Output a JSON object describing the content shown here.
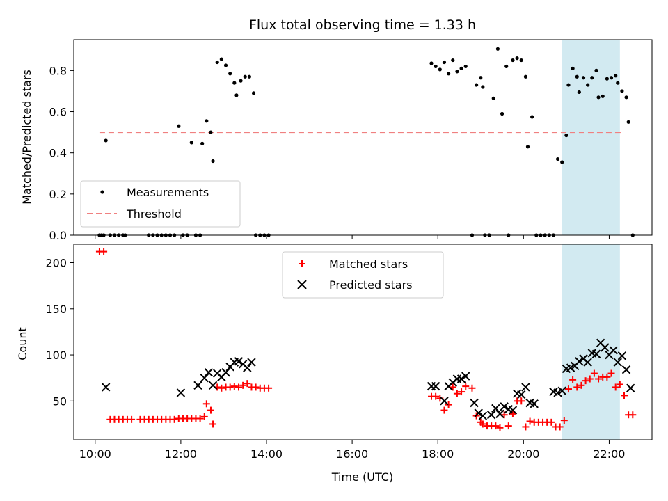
{
  "chart_data": [
    {
      "type": "scatter",
      "title": "Flux total observing time = 1.33 h",
      "ylabel": "Matched/Predicted stars",
      "xlabel": "",
      "xlim": [
        "09:30",
        "23:00"
      ],
      "ylim": [
        0,
        0.95
      ],
      "yticks": [
        0.0,
        0.2,
        0.4,
        0.6,
        0.8
      ],
      "ytick_labels": [
        "0.0",
        "0.2",
        "0.4",
        "0.6",
        "0.8"
      ],
      "xticks": [
        "10:00",
        "12:00",
        "14:00",
        "16:00",
        "18:00",
        "20:00",
        "22:00"
      ],
      "grid": false,
      "legend_position": "lower-left",
      "legend": [
        "Measurements",
        "Threshold"
      ],
      "highlight_span": {
        "x0": "20:54",
        "x1": "22:15",
        "color": "#add8e6"
      },
      "threshold": {
        "y": 0.5,
        "x0": "10:06",
        "x1": "22:18",
        "color": "#f08080"
      },
      "colors": {
        "measurements": "#000000",
        "threshold": "#f08080"
      },
      "series": [
        {
          "name": "Measurements",
          "marker": "dot",
          "points": [
            [
              "10:06",
              0
            ],
            [
              "10:09",
              0
            ],
            [
              "10:12",
              0
            ],
            [
              "10:15",
              0.46
            ],
            [
              "10:21",
              0
            ],
            [
              "10:27",
              0
            ],
            [
              "10:33",
              0
            ],
            [
              "10:39",
              0
            ],
            [
              "10:42",
              0
            ],
            [
              "11:15",
              0
            ],
            [
              "11:21",
              0
            ],
            [
              "11:27",
              0
            ],
            [
              "11:33",
              0
            ],
            [
              "11:39",
              0
            ],
            [
              "11:45",
              0
            ],
            [
              "11:51",
              0
            ],
            [
              "11:57",
              0.53
            ],
            [
              "12:03",
              0
            ],
            [
              "12:09",
              0
            ],
            [
              "12:15",
              0.45
            ],
            [
              "12:21",
              0
            ],
            [
              "12:27",
              0
            ],
            [
              "12:30",
              0.445
            ],
            [
              "12:36",
              0.555
            ],
            [
              "12:42",
              0.5
            ],
            [
              "12:45",
              0.36
            ],
            [
              "12:51",
              0.84
            ],
            [
              "12:57",
              0.855
            ],
            [
              "13:03",
              0.825
            ],
            [
              "13:09",
              0.785
            ],
            [
              "13:15",
              0.74
            ],
            [
              "13:18",
              0.68
            ],
            [
              "13:24",
              0.75
            ],
            [
              "13:30",
              0.77
            ],
            [
              "13:36",
              0.77
            ],
            [
              "13:42",
              0.69
            ],
            [
              "13:45",
              0
            ],
            [
              "13:51",
              0
            ],
            [
              "13:57",
              0
            ],
            [
              "14:03",
              0
            ],
            [
              "17:51",
              0.835
            ],
            [
              "17:57",
              0.82
            ],
            [
              "18:03",
              0.805
            ],
            [
              "18:09",
              0.84
            ],
            [
              "18:15",
              0.785
            ],
            [
              "18:21",
              0.85
            ],
            [
              "18:27",
              0.795
            ],
            [
              "18:33",
              0.81
            ],
            [
              "18:39",
              0.82
            ],
            [
              "18:48",
              0
            ],
            [
              "18:54",
              0.73
            ],
            [
              "19:00",
              0.765
            ],
            [
              "19:03",
              0.72
            ],
            [
              "19:06",
              0
            ],
            [
              "19:12",
              0
            ],
            [
              "19:18",
              0.665
            ],
            [
              "19:24",
              0.905
            ],
            [
              "19:30",
              0.59
            ],
            [
              "19:36",
              0.82
            ],
            [
              "19:39",
              0
            ],
            [
              "19:45",
              0.85
            ],
            [
              "19:51",
              0.86
            ],
            [
              "19:57",
              0.85
            ],
            [
              "20:03",
              0.77
            ],
            [
              "20:06",
              0.43
            ],
            [
              "20:12",
              0.575
            ],
            [
              "20:18",
              0
            ],
            [
              "20:24",
              0
            ],
            [
              "20:30",
              0
            ],
            [
              "20:36",
              0
            ],
            [
              "20:42",
              0
            ],
            [
              "20:48",
              0.37
            ],
            [
              "20:54",
              0.355
            ],
            [
              "21:00",
              0.485
            ],
            [
              "21:03",
              0.73
            ],
            [
              "21:09",
              0.81
            ],
            [
              "21:15",
              0.77
            ],
            [
              "21:18",
              0.695
            ],
            [
              "21:24",
              0.765
            ],
            [
              "21:30",
              0.73
            ],
            [
              "21:36",
              0.765
            ],
            [
              "21:42",
              0.8
            ],
            [
              "21:45",
              0.67
            ],
            [
              "21:51",
              0.675
            ],
            [
              "21:57",
              0.76
            ],
            [
              "22:03",
              0.765
            ],
            [
              "22:09",
              0.775
            ],
            [
              "22:12",
              0.74
            ],
            [
              "22:18",
              0.7
            ],
            [
              "22:24",
              0.67
            ],
            [
              "22:27",
              0.55
            ],
            [
              "22:33",
              0
            ]
          ]
        },
        {
          "name": "Threshold",
          "marker": "dashed-line",
          "points": [
            [
              "10:06",
              0.5
            ],
            [
              "22:18",
              0.5
            ]
          ]
        }
      ]
    },
    {
      "type": "scatter",
      "title": "",
      "ylabel": "Count",
      "xlabel": "Time (UTC)",
      "xlim": [
        "09:30",
        "23:00"
      ],
      "ylim": [
        8,
        220
      ],
      "yticks": [
        50,
        100,
        150,
        200
      ],
      "ytick_labels": [
        "50",
        "100",
        "150",
        "200"
      ],
      "xticks": [
        "10:00",
        "12:00",
        "14:00",
        "16:00",
        "18:00",
        "20:00",
        "22:00"
      ],
      "grid": false,
      "legend_position": "upper-center",
      "legend": [
        "Matched stars",
        "Predicted stars"
      ],
      "highlight_span": {
        "x0": "20:54",
        "x1": "22:15",
        "color": "#add8e6"
      },
      "colors": {
        "matched": "#ff0000",
        "predicted": "#000000"
      },
      "series": [
        {
          "name": "Matched stars",
          "marker": "plus",
          "points": [
            [
              "10:06",
              212
            ],
            [
              "10:12",
              212
            ],
            [
              "10:21",
              30
            ],
            [
              "10:27",
              30
            ],
            [
              "10:33",
              30
            ],
            [
              "10:39",
              30
            ],
            [
              "10:45",
              30
            ],
            [
              "10:51",
              30
            ],
            [
              "11:03",
              30
            ],
            [
              "11:09",
              30
            ],
            [
              "11:15",
              30
            ],
            [
              "11:21",
              30
            ],
            [
              "11:27",
              30
            ],
            [
              "11:33",
              30
            ],
            [
              "11:39",
              30
            ],
            [
              "11:45",
              30
            ],
            [
              "11:51",
              30
            ],
            [
              "11:57",
              31
            ],
            [
              "12:03",
              31
            ],
            [
              "12:09",
              31
            ],
            [
              "12:15",
              31
            ],
            [
              "12:21",
              31
            ],
            [
              "12:27",
              31
            ],
            [
              "12:33",
              33
            ],
            [
              "12:36",
              47
            ],
            [
              "12:42",
              40
            ],
            [
              "12:45",
              25
            ],
            [
              "12:51",
              65
            ],
            [
              "12:57",
              64
            ],
            [
              "13:03",
              65
            ],
            [
              "13:09",
              65
            ],
            [
              "13:15",
              66
            ],
            [
              "13:21",
              65
            ],
            [
              "13:27",
              67
            ],
            [
              "13:33",
              69
            ],
            [
              "13:39",
              65
            ],
            [
              "13:45",
              65
            ],
            [
              "13:51",
              64
            ],
            [
              "13:57",
              64
            ],
            [
              "14:03",
              64
            ],
            [
              "17:51",
              55
            ],
            [
              "17:57",
              55
            ],
            [
              "18:03",
              53
            ],
            [
              "18:09",
              40
            ],
            [
              "18:15",
              46
            ],
            [
              "18:21",
              65
            ],
            [
              "18:27",
              58
            ],
            [
              "18:33",
              60
            ],
            [
              "18:39",
              66
            ],
            [
              "18:48",
              64
            ],
            [
              "18:54",
              34
            ],
            [
              "19:00",
              27
            ],
            [
              "19:03",
              25
            ],
            [
              "19:09",
              23
            ],
            [
              "19:15",
              23
            ],
            [
              "19:21",
              23
            ],
            [
              "19:27",
              21
            ],
            [
              "19:33",
              35
            ],
            [
              "19:39",
              23
            ],
            [
              "19:45",
              36
            ],
            [
              "19:51",
              50
            ],
            [
              "19:57",
              50
            ],
            [
              "20:03",
              22
            ],
            [
              "20:09",
              28
            ],
            [
              "20:15",
              27
            ],
            [
              "20:21",
              27
            ],
            [
              "20:27",
              27
            ],
            [
              "20:33",
              27
            ],
            [
              "20:39",
              27
            ],
            [
              "20:45",
              22
            ],
            [
              "20:51",
              22
            ],
            [
              "20:57",
              29
            ],
            [
              "21:03",
              63
            ],
            [
              "21:09",
              73
            ],
            [
              "21:15",
              65
            ],
            [
              "21:21",
              67
            ],
            [
              "21:27",
              72
            ],
            [
              "21:33",
              74
            ],
            [
              "21:39",
              80
            ],
            [
              "21:45",
              74
            ],
            [
              "21:51",
              76
            ],
            [
              "21:57",
              76
            ],
            [
              "22:03",
              80
            ],
            [
              "22:09",
              65
            ],
            [
              "22:15",
              68
            ],
            [
              "22:21",
              56
            ],
            [
              "22:27",
              35
            ],
            [
              "22:33",
              35
            ]
          ]
        },
        {
          "name": "Predicted stars",
          "marker": "x",
          "points": [
            [
              "10:15",
              65
            ],
            [
              "12:00",
              59
            ],
            [
              "12:24",
              67
            ],
            [
              "12:33",
              75
            ],
            [
              "12:39",
              81
            ],
            [
              "12:45",
              67
            ],
            [
              "12:51",
              80
            ],
            [
              "12:57",
              76
            ],
            [
              "13:03",
              81
            ],
            [
              "13:09",
              87
            ],
            [
              "13:15",
              92
            ],
            [
              "13:21",
              93
            ],
            [
              "13:27",
              90
            ],
            [
              "13:33",
              86
            ],
            [
              "13:39",
              92
            ],
            [
              "17:51",
              66
            ],
            [
              "17:57",
              66
            ],
            [
              "18:09",
              50
            ],
            [
              "18:15",
              66
            ],
            [
              "18:21",
              70
            ],
            [
              "18:27",
              74
            ],
            [
              "18:33",
              74
            ],
            [
              "18:39",
              77
            ],
            [
              "18:51",
              48
            ],
            [
              "18:57",
              37
            ],
            [
              "19:03",
              34
            ],
            [
              "19:15",
              35
            ],
            [
              "19:21",
              42
            ],
            [
              "19:27",
              36
            ],
            [
              "19:33",
              44
            ],
            [
              "19:39",
              41
            ],
            [
              "19:45",
              40
            ],
            [
              "19:51",
              58
            ],
            [
              "19:57",
              57
            ],
            [
              "20:03",
              65
            ],
            [
              "20:09",
              48
            ],
            [
              "20:15",
              47
            ],
            [
              "20:42",
              60
            ],
            [
              "20:48",
              59
            ],
            [
              "20:54",
              61
            ],
            [
              "21:00",
              85
            ],
            [
              "21:06",
              86
            ],
            [
              "21:12",
              88
            ],
            [
              "21:18",
              93
            ],
            [
              "21:24",
              96
            ],
            [
              "21:30",
              92
            ],
            [
              "21:36",
              102
            ],
            [
              "21:42",
              101
            ],
            [
              "21:48",
              113
            ],
            [
              "21:54",
              108
            ],
            [
              "22:00",
              100
            ],
            [
              "22:06",
              105
            ],
            [
              "22:12",
              92
            ],
            [
              "22:18",
              99
            ],
            [
              "22:24",
              84
            ],
            [
              "22:30",
              64
            ]
          ]
        }
      ]
    }
  ]
}
